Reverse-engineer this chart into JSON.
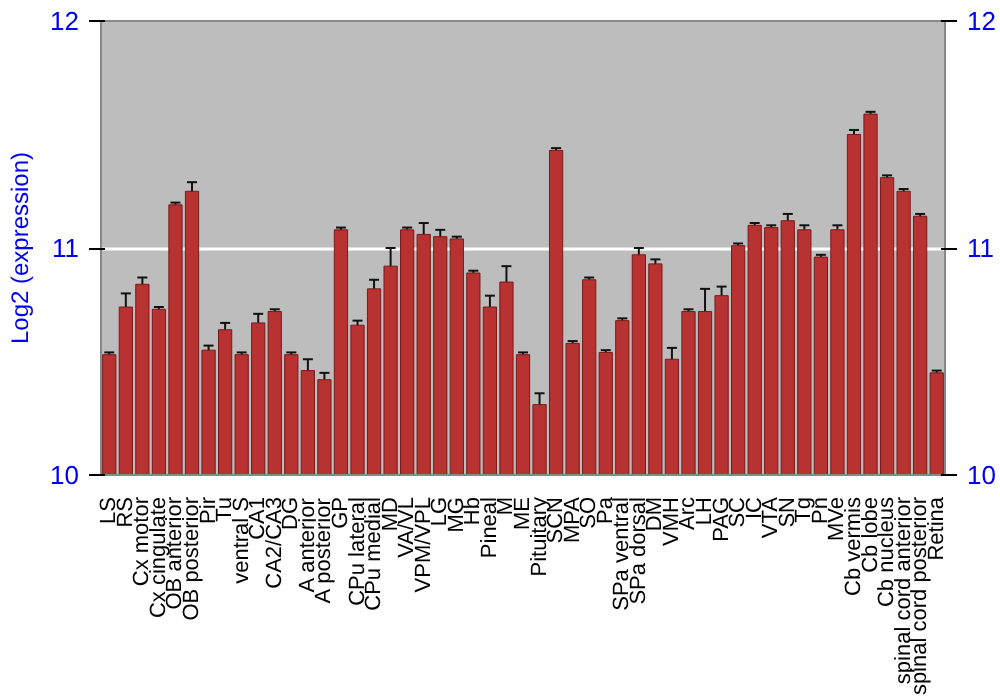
{
  "chart_data": {
    "type": "bar",
    "ylabel": "Log2 (expression)",
    "categories": [
      "LS",
      "RS",
      "Cx motor",
      "Cx cingulate",
      "OB anterior",
      "OB posterior",
      "Pir",
      "Tu",
      "ventral S",
      "CA1",
      "CA2/CA3",
      "DG",
      "A anterior",
      "A posterior",
      "GP",
      "CPu lateral",
      "CPu medial",
      "MD",
      "VA/VL",
      "VPM/VPL",
      "LG",
      "MG",
      "Hb",
      "Pineal",
      "M",
      "ME",
      "Pituitary",
      "SCN",
      "MPA",
      "SO",
      "Pa",
      "SPa ventral",
      "SPa dorsal",
      "DM",
      "VMH",
      "Arc",
      "LH",
      "PAG",
      "SC",
      "IC",
      "VTA",
      "SN",
      "Tg",
      "Pn",
      "MVe",
      "Cb vermis",
      "Cb lobe",
      "Cb nucleus",
      "spinal cord anterior",
      "spinal cord posterior",
      "Retina"
    ],
    "values": [
      10.53,
      10.74,
      10.84,
      10.73,
      11.19,
      11.25,
      10.55,
      10.64,
      10.53,
      10.67,
      10.72,
      10.53,
      10.46,
      10.42,
      11.08,
      10.66,
      10.82,
      10.92,
      11.08,
      11.06,
      11.05,
      11.04,
      10.89,
      10.74,
      10.85,
      10.53,
      10.31,
      11.43,
      10.58,
      10.86,
      10.54,
      10.68,
      10.97,
      10.93,
      10.51,
      10.72,
      10.72,
      10.79,
      11.01,
      11.1,
      11.09,
      11.12,
      11.08,
      10.96,
      11.08,
      11.5,
      11.59,
      11.31,
      11.25,
      11.14,
      10.45
    ],
    "errors": [
      0.01,
      0.06,
      0.03,
      0.01,
      0.01,
      0.04,
      0.02,
      0.03,
      0.01,
      0.04,
      0.01,
      0.01,
      0.05,
      0.03,
      0.01,
      0.02,
      0.04,
      0.08,
      0.01,
      0.05,
      0.03,
      0.01,
      0.01,
      0.05,
      0.07,
      0.01,
      0.05,
      0.01,
      0.01,
      0.01,
      0.01,
      0.01,
      0.03,
      0.02,
      0.05,
      0.01,
      0.1,
      0.04,
      0.01,
      0.01,
      0.01,
      0.03,
      0.02,
      0.01,
      0.02,
      0.02,
      0.01,
      0.01,
      0.01,
      0.01,
      0.01
    ],
    "color": "#b83232",
    "ylim": [
      10,
      12
    ],
    "yticks": [
      10,
      11,
      12
    ],
    "y2lim": [
      10,
      12
    ],
    "y2ticks": [
      10,
      11,
      12
    ],
    "grid": "y"
  }
}
